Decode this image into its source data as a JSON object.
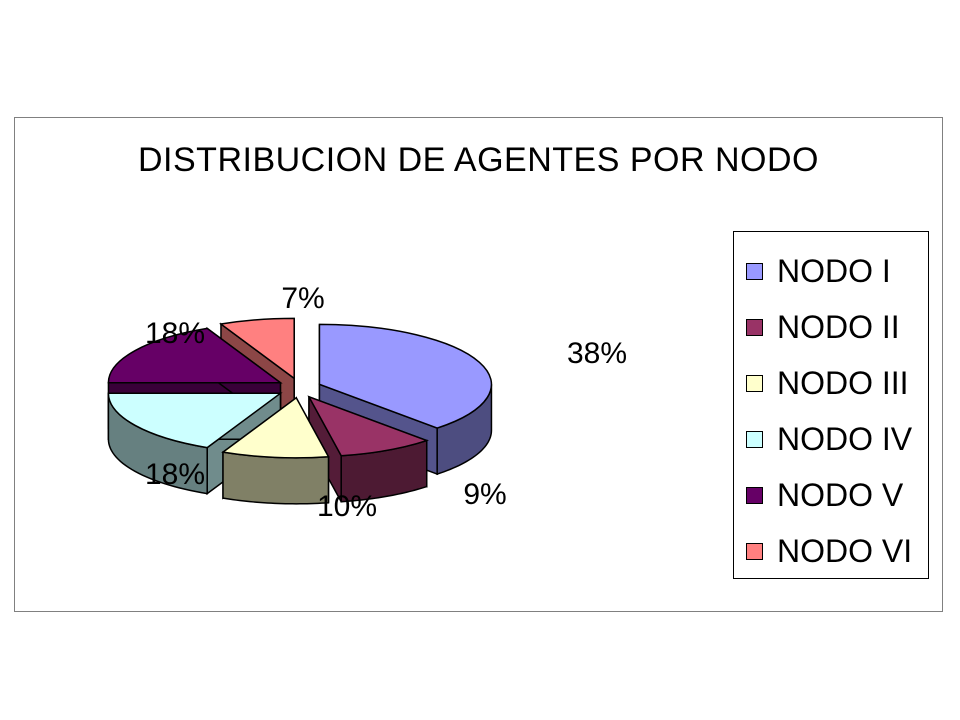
{
  "chart_data": {
    "type": "pie",
    "title": "DISTRIBUCION DE AGENTES POR NODO",
    "categories": [
      "NODO I",
      "NODO II",
      "NODO III",
      "NODO IV",
      "NODO V",
      "NODO VI"
    ],
    "values": [
      38,
      9,
      10,
      18,
      18,
      7
    ],
    "labels": [
      "38%",
      "9%",
      "10%",
      "18%",
      "18%",
      "7%"
    ],
    "colors": [
      "#9999ff",
      "#993366",
      "#ffffcc",
      "#ccffff",
      "#660066",
      "#ff8080"
    ],
    "legend": "right",
    "style": "3d-exploded"
  }
}
